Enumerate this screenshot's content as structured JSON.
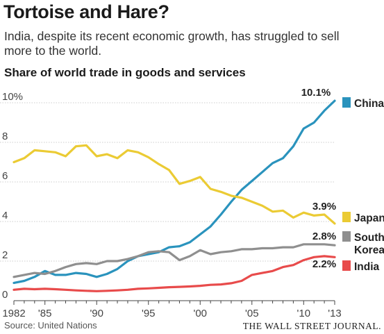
{
  "header": {
    "title": "Tortoise and Hare?",
    "subtitle": "India, despite its recent economic growth, has struggled to sell more to the world.",
    "chart_title": "Share of world trade in goods and services"
  },
  "footer": {
    "source": "Source: United Nations",
    "credit": "THE WALL STREET JOURNAL."
  },
  "chart_data": {
    "type": "line",
    "title": "Share of world trade in goods and services",
    "xlabel": "",
    "ylabel": "",
    "xlim": [
      1982,
      2013
    ],
    "ylim": [
      0,
      10
    ],
    "grid": true,
    "y_ticks": [
      "0",
      "2",
      "4",
      "6",
      "8",
      "10%"
    ],
    "x_ticks": [
      {
        "x": 1982,
        "label": "1982"
      },
      {
        "x": 1985,
        "label": "'85"
      },
      {
        "x": 1990,
        "label": "'90"
      },
      {
        "x": 1995,
        "label": "'95"
      },
      {
        "x": 2000,
        "label": "'00"
      },
      {
        "x": 2005,
        "label": "'05"
      },
      {
        "x": 2010,
        "label": "'10"
      },
      {
        "x": 2013,
        "label": "'13"
      }
    ],
    "x": [
      1982,
      1983,
      1984,
      1985,
      1986,
      1987,
      1988,
      1989,
      1990,
      1991,
      1992,
      1993,
      1994,
      1995,
      1996,
      1997,
      1998,
      1999,
      2000,
      2001,
      2002,
      2003,
      2004,
      2005,
      2006,
      2007,
      2008,
      2009,
      2010,
      2011,
      2012,
      2013
    ],
    "series": [
      {
        "name": "China",
        "color": "#2a93bd",
        "end_label": "10.1%",
        "values": [
          0.9,
          1.0,
          1.2,
          1.5,
          1.3,
          1.3,
          1.4,
          1.35,
          1.2,
          1.35,
          1.6,
          2.0,
          2.25,
          2.35,
          2.45,
          2.7,
          2.75,
          2.95,
          3.35,
          3.75,
          4.35,
          5.0,
          5.6,
          6.05,
          6.5,
          6.95,
          7.2,
          7.8,
          8.7,
          9.0,
          9.6,
          10.1
        ]
      },
      {
        "name": "Japan",
        "color": "#ebcb34",
        "end_label": "3.9%",
        "values": [
          7.0,
          7.2,
          7.6,
          7.55,
          7.5,
          7.3,
          7.8,
          7.85,
          7.3,
          7.4,
          7.2,
          7.6,
          7.5,
          7.25,
          6.9,
          6.6,
          5.9,
          6.05,
          6.25,
          5.65,
          5.5,
          5.3,
          5.2,
          5.0,
          4.8,
          4.5,
          4.55,
          4.2,
          4.45,
          4.3,
          4.35,
          3.9
        ]
      },
      {
        "name": "South Korea",
        "label_lines": [
          "South",
          "Korea"
        ],
        "color": "#8f8f8f",
        "end_label": "2.8%",
        "values": [
          1.2,
          1.3,
          1.4,
          1.35,
          1.5,
          1.7,
          1.85,
          1.9,
          1.85,
          2.0,
          2.0,
          2.1,
          2.25,
          2.45,
          2.5,
          2.45,
          2.05,
          2.25,
          2.55,
          2.35,
          2.45,
          2.5,
          2.6,
          2.6,
          2.65,
          2.65,
          2.7,
          2.7,
          2.85,
          2.85,
          2.85,
          2.8
        ]
      },
      {
        "name": "India",
        "color": "#e84b4b",
        "end_label": "2.2%",
        "values": [
          0.55,
          0.6,
          0.58,
          0.6,
          0.58,
          0.55,
          0.52,
          0.5,
          0.48,
          0.5,
          0.52,
          0.55,
          0.6,
          0.62,
          0.65,
          0.68,
          0.7,
          0.72,
          0.75,
          0.8,
          0.82,
          0.88,
          1.0,
          1.3,
          1.4,
          1.5,
          1.7,
          1.8,
          2.05,
          2.2,
          2.25,
          2.2
        ]
      }
    ]
  }
}
